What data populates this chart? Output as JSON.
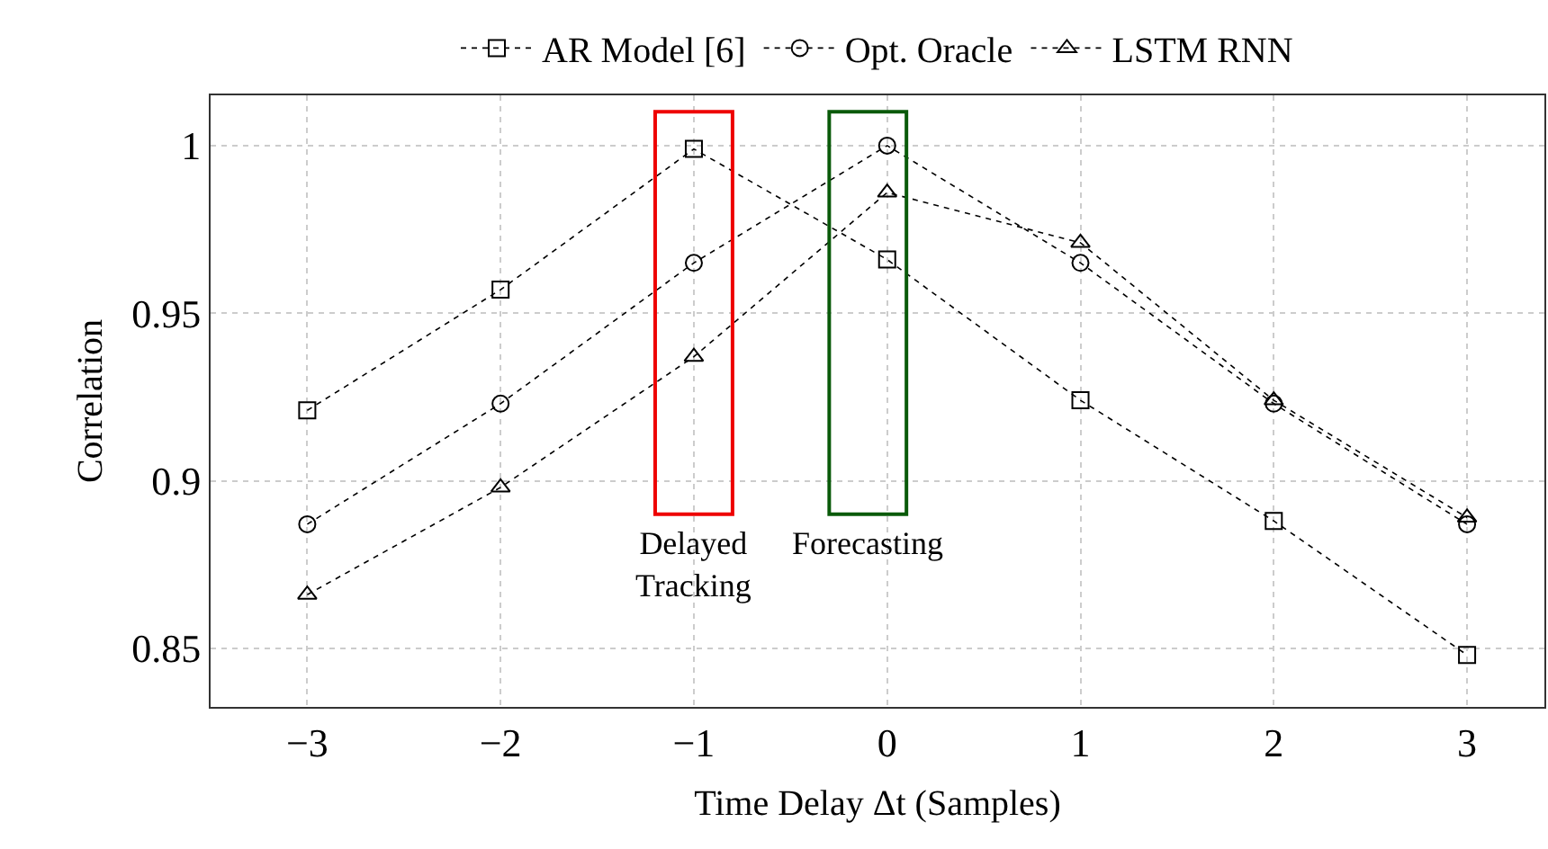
{
  "chart_data": {
    "type": "line",
    "xlabel": "Time Delay Δt (Samples)",
    "ylabel": "Correlation",
    "x": [
      -3,
      -2,
      -1,
      0,
      1,
      2,
      3
    ],
    "series": [
      {
        "name": "AR Model [6]",
        "color": "#000000",
        "marker": "square",
        "values": [
          0.921,
          0.957,
          0.999,
          0.966,
          0.924,
          0.888,
          0.848
        ]
      },
      {
        "name": "Opt. Oracle",
        "color": "#000000",
        "marker": "circle",
        "values": [
          0.887,
          0.923,
          0.965,
          1.0,
          0.965,
          0.923,
          0.887
        ]
      },
      {
        "name": "LSTM RNN",
        "color": "#000000",
        "marker": "triangle",
        "values": [
          0.866,
          0.898,
          0.937,
          0.986,
          0.971,
          0.924,
          0.889
        ]
      }
    ],
    "line_style": "dotted",
    "xlim": [
      -3.5,
      3.4
    ],
    "xticks": [
      {
        "value": -3,
        "label": "−3"
      },
      {
        "value": -2,
        "label": "−2"
      },
      {
        "value": -1,
        "label": "−1"
      },
      0,
      1,
      2,
      3
    ],
    "ylim": [
      0.8325,
      1.015
    ],
    "yticks": [
      0.85,
      0.9,
      0.95,
      1
    ],
    "grid": true,
    "legend": "top",
    "annotations": [
      "Delayed\nTracking",
      "Forecasting"
    ]
  }
}
